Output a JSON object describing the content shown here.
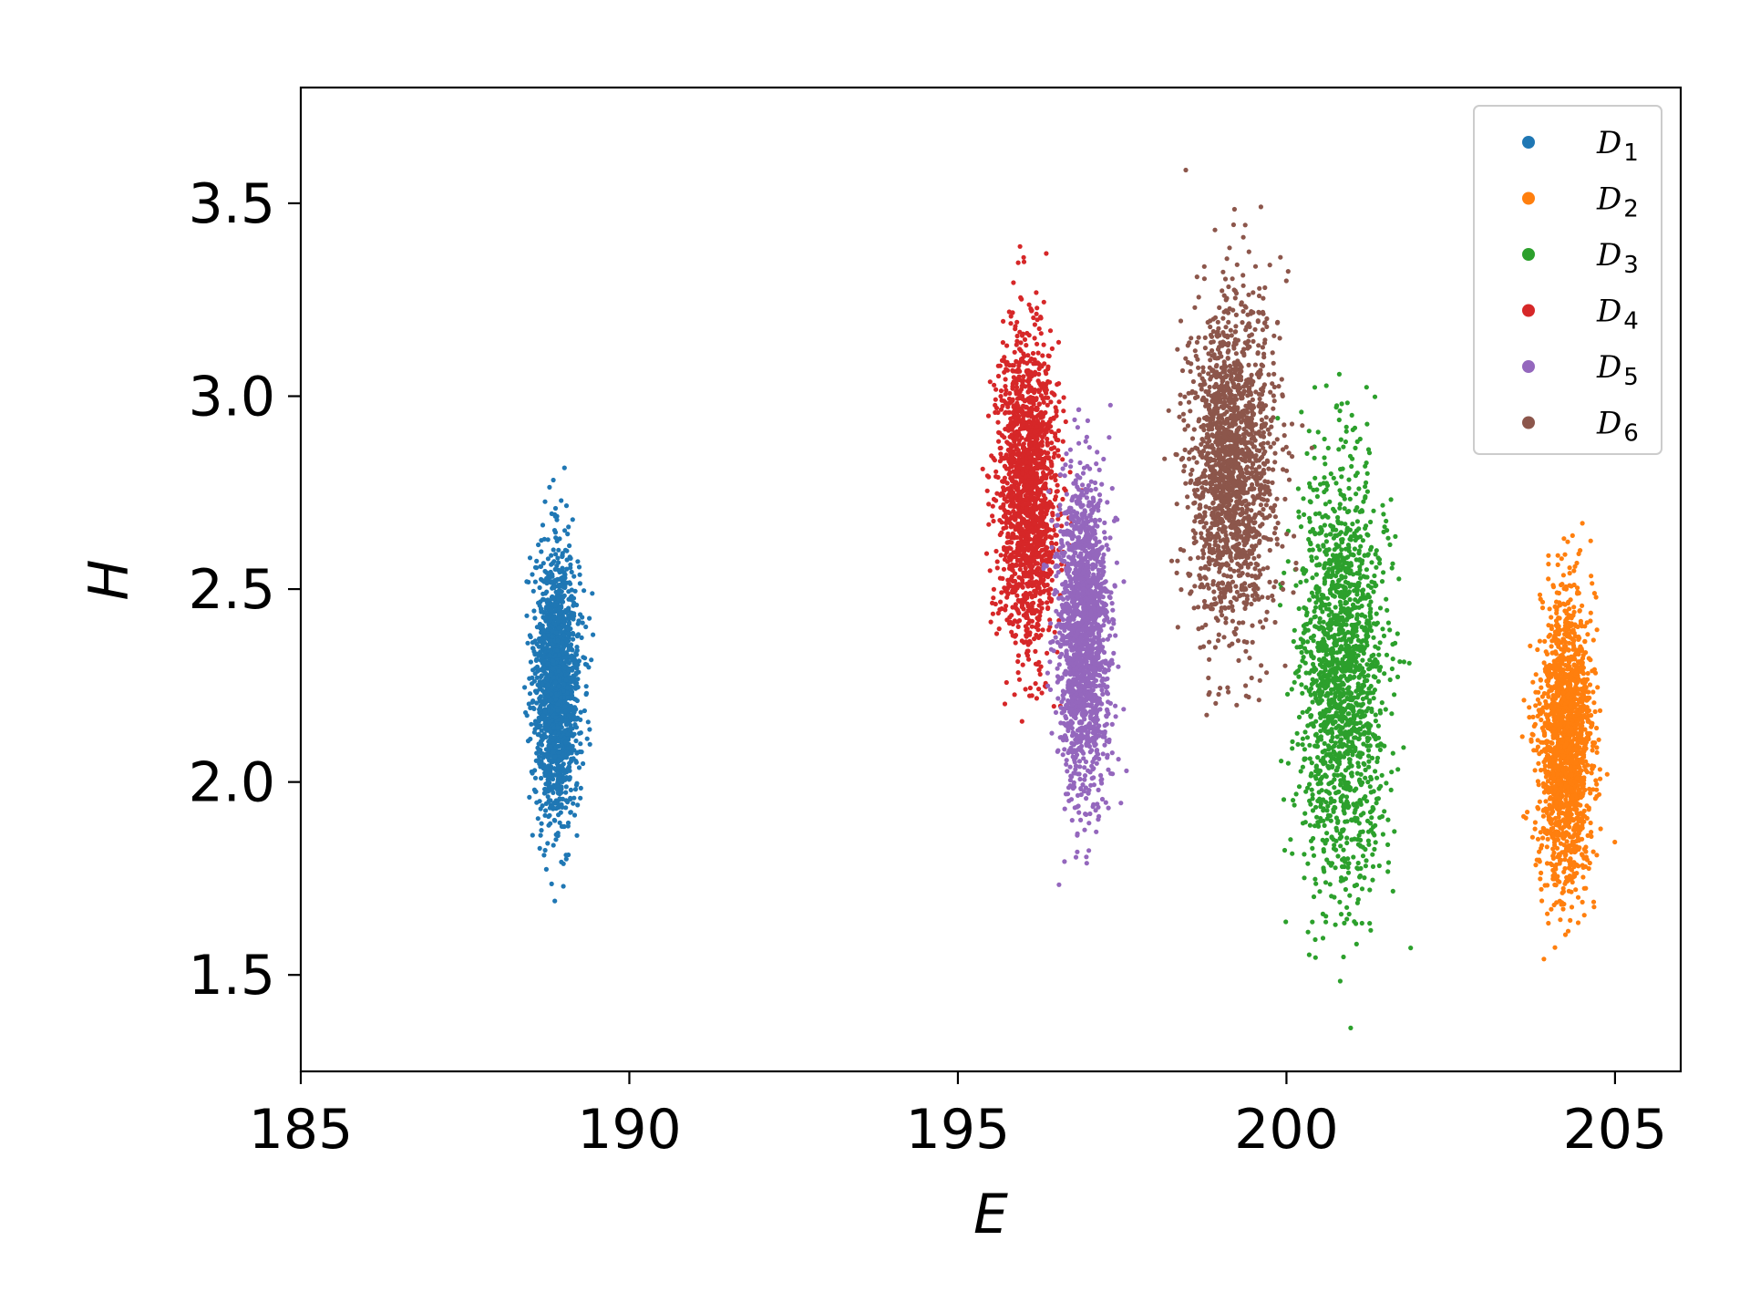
{
  "chart_data": {
    "type": "scatter",
    "title": "",
    "xlabel": "E",
    "ylabel": "H",
    "xlim": [
      185,
      206
    ],
    "ylim": [
      1.25,
      3.8
    ],
    "xticks": [
      185,
      190,
      195,
      200,
      205
    ],
    "yticks": [
      1.5,
      2.0,
      2.5,
      3.0,
      3.5
    ],
    "xtick_labels": [
      "185",
      "190",
      "195",
      "200",
      "205"
    ],
    "ytick_labels": [
      "1.5",
      "2.0",
      "2.5",
      "3.0",
      "3.5"
    ],
    "grid": false,
    "legend_position": "top-right",
    "series": [
      {
        "name": "D",
        "subscript": "1",
        "color": "#1f77b4",
        "center_x": 188.9,
        "center_y": 2.25,
        "sd_x": 0.17,
        "sd_y": 0.17,
        "x_range": [
          188.3,
          190.0
        ],
        "y_range": [
          1.57,
          2.84
        ]
      },
      {
        "name": "D",
        "subscript": "2",
        "color": "#ff7f0e",
        "center_x": 204.25,
        "center_y": 2.1,
        "sd_x": 0.2,
        "sd_y": 0.19,
        "x_range": [
          203.5,
          205.0
        ],
        "y_range": [
          1.51,
          2.68
        ]
      },
      {
        "name": "D",
        "subscript": "3",
        "color": "#2ca02c",
        "center_x": 200.85,
        "center_y": 2.28,
        "sd_x": 0.33,
        "sd_y": 0.27,
        "x_range": [
          199.6,
          202.2
        ],
        "y_range": [
          1.34,
          3.08
        ]
      },
      {
        "name": "D",
        "subscript": "4",
        "color": "#d62728",
        "center_x": 196.05,
        "center_y": 2.75,
        "sd_x": 0.23,
        "sd_y": 0.2,
        "x_range": [
          195.0,
          197.0
        ],
        "y_range": [
          2.13,
          3.4
        ]
      },
      {
        "name": "D",
        "subscript": "5",
        "color": "#9467bd",
        "center_x": 196.9,
        "center_y": 2.38,
        "sd_x": 0.2,
        "sd_y": 0.2,
        "x_range": [
          196.3,
          197.6
        ],
        "y_range": [
          1.73,
          2.98
        ]
      },
      {
        "name": "D",
        "subscript": "6",
        "color": "#8c564b",
        "center_x": 199.15,
        "center_y": 2.82,
        "sd_x": 0.33,
        "sd_y": 0.22,
        "x_range": [
          197.6,
          200.5
        ],
        "y_range": [
          2.12,
          3.7
        ]
      }
    ]
  }
}
